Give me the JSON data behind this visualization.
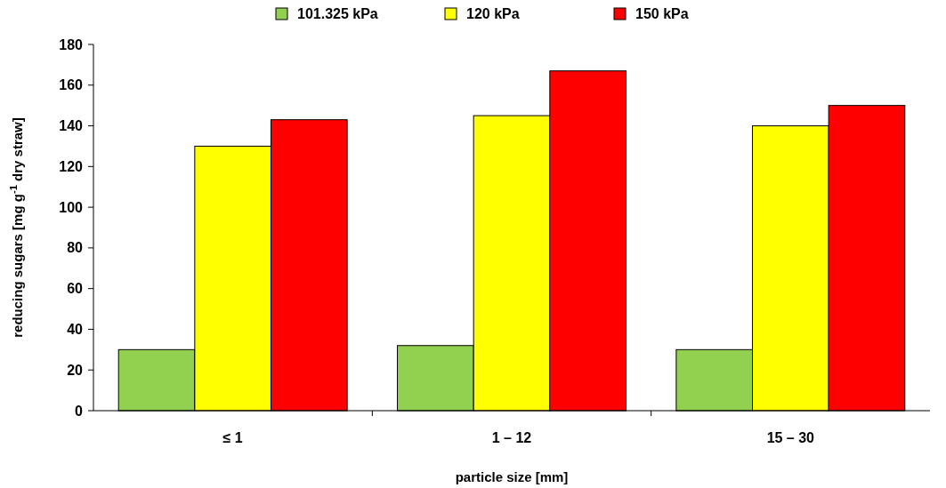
{
  "chart_data": {
    "type": "bar",
    "xlabel": "particle size [mm]",
    "ylabel": "reducing sugars [mg g$^{-1}$ dry straw]",
    "categories": [
      "≤ 1",
      "1 – 12",
      "15 – 30"
    ],
    "series": [
      {
        "name": "101.325 kPa",
        "color": "#92d050",
        "values": [
          30,
          32,
          30
        ]
      },
      {
        "name": "120 kPa",
        "color": "#ffff00",
        "values": [
          130,
          145,
          140
        ]
      },
      {
        "name": "150 kPa",
        "color": "#ff0000",
        "values": [
          143,
          167,
          150
        ]
      }
    ],
    "ylim": [
      0,
      180
    ],
    "yticks": [
      0,
      20,
      40,
      60,
      80,
      100,
      120,
      140,
      160,
      180
    ],
    "grid": false,
    "legend": "top"
  }
}
